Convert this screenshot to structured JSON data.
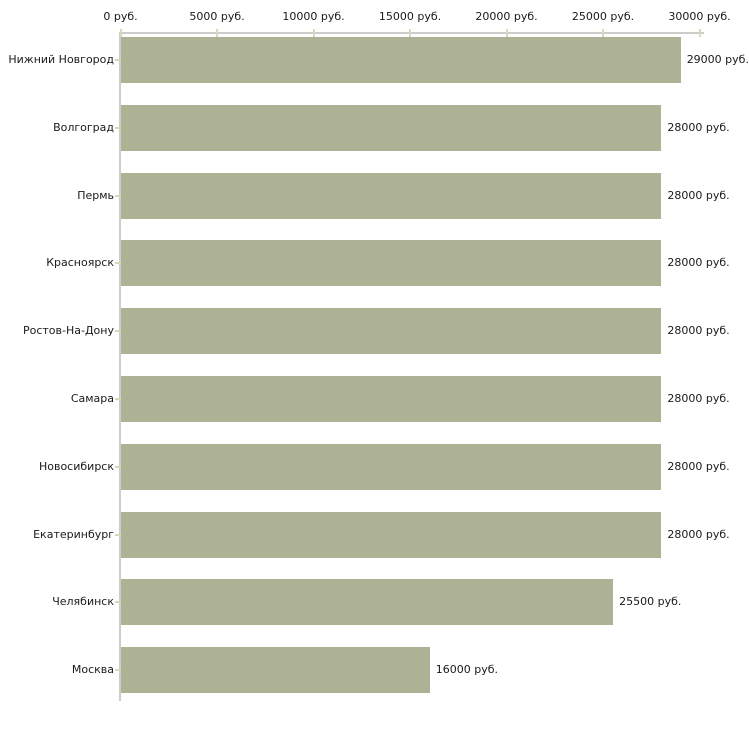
{
  "chart_data": {
    "type": "bar",
    "orientation": "horizontal",
    "title": "",
    "xlabel": "",
    "ylabel": "",
    "grid": false,
    "legend": false,
    "categories": [
      "Нижний Новгород",
      "Волгоград",
      "Пермь",
      "Красноярск",
      "Ростов-На-Дону",
      "Самара",
      "Новосибирск",
      "Екатеринбург",
      "Челябинск",
      "Москва"
    ],
    "values": [
      29000,
      28000,
      28000,
      28000,
      28000,
      28000,
      28000,
      28000,
      25500,
      16000
    ],
    "value_labels": [
      "29000 руб.",
      "28000 руб.",
      "28000 руб.",
      "28000 руб.",
      "28000 руб.",
      "28000 руб.",
      "28000 руб.",
      "28000 руб.",
      "25500 руб.",
      "16000 руб."
    ],
    "x_axis": {
      "position": "top",
      "min": 0,
      "max": 30000,
      "tick_step": 5000,
      "tick_labels": [
        "0 руб.",
        "5000 руб.",
        "10000 руб.",
        "15000 руб.",
        "20000 руб.",
        "25000 руб.",
        "30000 руб."
      ]
    },
    "colors": {
      "bar_fill": "#adb295",
      "axis_line": "#cccccc",
      "tick_mark": "#d7dab9",
      "text": "#1a1a1a",
      "background": "#ffffff"
    }
  }
}
